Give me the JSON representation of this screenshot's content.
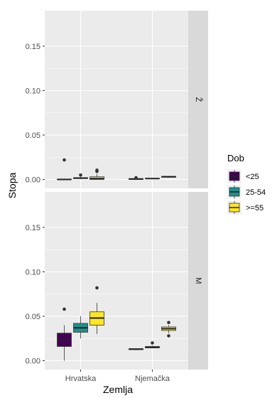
{
  "chart_data": {
    "type": "box",
    "xlabel": "Zemlja",
    "ylabel": "Stopa",
    "categories": [
      "Hrvatska",
      "Njemačka"
    ],
    "ylim": [
      -0.01,
      0.19
    ],
    "yticks": [
      0.0,
      0.05,
      0.1,
      0.15
    ],
    "ytick_labels": [
      "0.00",
      "0.05",
      "0.10",
      "0.15"
    ],
    "legend": {
      "title": "Dob",
      "position": "right",
      "items": [
        {
          "label": "<25",
          "color": "#440154"
        },
        {
          "label": "25-54",
          "color": "#21908C"
        },
        {
          "label": ">=55",
          "color": "#FDE725"
        }
      ]
    },
    "facets": [
      {
        "label": "Ž",
        "boxes": [
          {
            "category": "Hrvatska",
            "group": "<25",
            "min": 0.0,
            "q1": 0.0,
            "median": 0.0,
            "q3": 0.0005,
            "max": 0.001,
            "outliers": [
              0.022
            ]
          },
          {
            "category": "Hrvatska",
            "group": "25-54",
            "min": 0.0005,
            "q1": 0.001,
            "median": 0.0015,
            "q3": 0.002,
            "max": 0.003,
            "outliers": [
              0.005
            ]
          },
          {
            "category": "Hrvatska",
            "group": ">=55",
            "min": 0.0,
            "q1": 0.0,
            "median": 0.001,
            "q3": 0.003,
            "max": 0.006,
            "outliers": [
              0.009,
              0.0105
            ]
          },
          {
            "category": "Njemačka",
            "group": "<25",
            "min": 0.0,
            "q1": 0.0,
            "median": 0.0005,
            "q3": 0.001,
            "max": 0.0015,
            "outliers": [
              0.002
            ]
          },
          {
            "category": "Njemačka",
            "group": "25-54",
            "min": 0.0005,
            "q1": 0.0008,
            "median": 0.001,
            "q3": 0.0013,
            "max": 0.0016,
            "outliers": []
          },
          {
            "category": "Njemačka",
            "group": ">=55",
            "min": 0.002,
            "q1": 0.0025,
            "median": 0.003,
            "q3": 0.0035,
            "max": 0.004,
            "outliers": []
          }
        ]
      },
      {
        "label": "M",
        "boxes": [
          {
            "category": "Hrvatska",
            "group": "<25",
            "min": 0.0,
            "q1": 0.016,
            "median": 0.024,
            "q3": 0.031,
            "max": 0.04,
            "outliers": [
              0.058
            ]
          },
          {
            "category": "Hrvatska",
            "group": "25-54",
            "min": 0.025,
            "q1": 0.032,
            "median": 0.037,
            "q3": 0.042,
            "max": 0.05,
            "outliers": []
          },
          {
            "category": "Hrvatska",
            "group": ">=55",
            "min": 0.03,
            "q1": 0.04,
            "median": 0.048,
            "q3": 0.055,
            "max": 0.065,
            "outliers": [
              0.082
            ]
          },
          {
            "category": "Njemačka",
            "group": "<25",
            "min": 0.012,
            "q1": 0.0125,
            "median": 0.013,
            "q3": 0.0135,
            "max": 0.014,
            "outliers": []
          },
          {
            "category": "Njemačka",
            "group": "25-54",
            "min": 0.014,
            "q1": 0.0145,
            "median": 0.015,
            "q3": 0.016,
            "max": 0.017,
            "outliers": [
              0.02
            ]
          },
          {
            "category": "Njemačka",
            "group": ">=55",
            "min": 0.031,
            "q1": 0.034,
            "median": 0.036,
            "q3": 0.038,
            "max": 0.04,
            "outliers": [
              0.028,
              0.043
            ]
          }
        ]
      }
    ]
  }
}
